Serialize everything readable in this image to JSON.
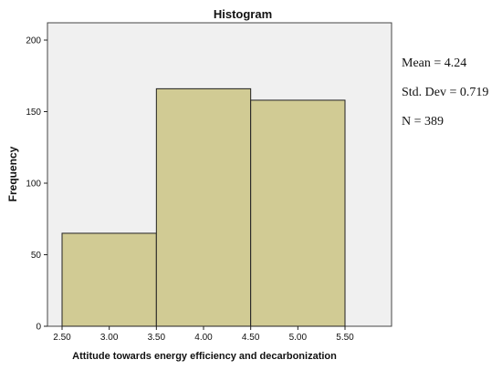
{
  "chart_data": {
    "type": "bar",
    "title": "Histogram",
    "xlabel": "Attitude towards energy efficiency and decarbonization",
    "ylabel": "Frequency",
    "xlim": [
      2.5,
      5.5
    ],
    "ylim": [
      0,
      200
    ],
    "x_ticks": [
      "2.50",
      "3.00",
      "3.50",
      "4.00",
      "4.50",
      "5.00",
      "5.50"
    ],
    "y_ticks": [
      0,
      50,
      100,
      150,
      200
    ],
    "bins": [
      {
        "start": 2.5,
        "end": 3.5,
        "count": 65
      },
      {
        "start": 3.5,
        "end": 4.5,
        "count": 166
      },
      {
        "start": 4.5,
        "end": 5.5,
        "count": 158
      }
    ],
    "bar_color": "#d1cb94",
    "plot_background": "#f0f0f0",
    "grid": false
  },
  "stats": {
    "mean": "Mean = 4.24",
    "std_dev": "Std. Dev = 0.719",
    "n": "N = 389"
  }
}
